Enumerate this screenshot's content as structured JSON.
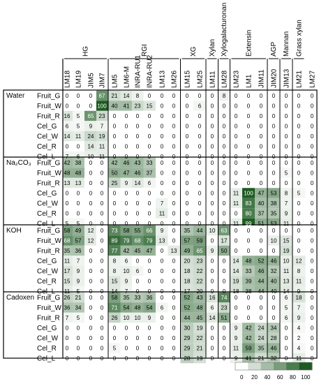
{
  "chart_data": {
    "type": "heatmap",
    "families": [
      {
        "name": "HG",
        "start": 0,
        "end": 3
      },
      {
        "name": "RGI",
        "start": 4,
        "end": 9
      },
      {
        "name": "XG",
        "start": 10,
        "end": 11
      },
      {
        "name": "Xylan",
        "start": 12,
        "end": 12
      },
      {
        "name": "Xylogalacturonan",
        "start": 13,
        "end": 13
      },
      {
        "name": "Extensin",
        "start": 14,
        "end": 16
      },
      {
        "name": "AGP",
        "start": 17,
        "end": 17
      },
      {
        "name": "Mannan",
        "start": 18,
        "end": 18
      },
      {
        "name": "Grass xylan",
        "start": 19,
        "end": 19
      }
    ],
    "antibodies": [
      "LM18",
      "LM19",
      "JIM5",
      "JIM7",
      "LM5",
      "LM6-M",
      "INRA-RU1",
      "INRA-RU2",
      "LM13",
      "LM26",
      "LM15",
      "LM25",
      "LM11",
      "LM28",
      "LM23",
      "LM1",
      "JIM11",
      "JIM20",
      "JIM13",
      "LM21",
      "LM27"
    ],
    "antibody_family_index": [
      0,
      0,
      0,
      0,
      1,
      1,
      1,
      1,
      1,
      1,
      2,
      2,
      3,
      3,
      4,
      5,
      5,
      5,
      6,
      7,
      8
    ],
    "extractions": [
      {
        "name": "Water",
        "rows": [
          {
            "label": "Fruit_G",
            "values": [
              0,
              0,
              0,
              67,
              21,
              14,
              8,
              0,
              0,
              0,
              0,
              0,
              0,
              8,
              0,
              0,
              0,
              0,
              0,
              0,
              0
            ]
          },
          {
            "label": "Fruit_W",
            "values": [
              0,
              0,
              0,
              100,
              40,
              41,
              23,
              15,
              0,
              0,
              0,
              6,
              0,
              0,
              0,
              0,
              0,
              0,
              0,
              0,
              0
            ]
          },
          {
            "label": "Fruit_R",
            "values": [
              16,
              5,
              65,
              23,
              0,
              0,
              0,
              0,
              0,
              0,
              0,
              0,
              0,
              0,
              0,
              0,
              0,
              0,
              0,
              0,
              0
            ]
          },
          {
            "label": "Cel_G",
            "values": [
              6,
              5,
              9,
              7,
              0,
              0,
              0,
              0,
              0,
              0,
              0,
              0,
              0,
              0,
              0,
              0,
              0,
              0,
              0,
              0,
              0
            ]
          },
          {
            "label": "Cel_W",
            "values": [
              14,
              11,
              24,
              19,
              0,
              0,
              0,
              0,
              0,
              0,
              0,
              0,
              0,
              0,
              0,
              0,
              0,
              0,
              0,
              0,
              0
            ]
          },
          {
            "label": "Cel_R",
            "values": [
              0,
              0,
              14,
              11,
              0,
              0,
              0,
              0,
              0,
              0,
              0,
              0,
              0,
              0,
              0,
              0,
              0,
              0,
              0,
              0,
              0
            ]
          },
          {
            "label": "Cel_L",
            "values": [
              7,
              6,
              10,
              11,
              0,
              0,
              0,
              0,
              0,
              0,
              0,
              0,
              0,
              0,
              0,
              0,
              0,
              0,
              0,
              0,
              0
            ]
          }
        ]
      },
      {
        "name": "Na₂CO₃",
        "rows": [
          {
            "label": "Fruit_G",
            "values": [
              42,
              38,
              0,
              0,
              42,
              46,
              43,
              33,
              0,
              0,
              0,
              0,
              0,
              0,
              0,
              0,
              0,
              0,
              0,
              0,
              0
            ]
          },
          {
            "label": "Fruit_W",
            "values": [
              48,
              48,
              0,
              0,
              50,
              47,
              46,
              37,
              0,
              0,
              0,
              0,
              0,
              0,
              0,
              0,
              0,
              0,
              5,
              0,
              0
            ]
          },
          {
            "label": "Fruit_R",
            "values": [
              13,
              13,
              0,
              0,
              25,
              9,
              14,
              6,
              0,
              0,
              0,
              0,
              0,
              0,
              0,
              0,
              0,
              0,
              0,
              0,
              0
            ]
          },
          {
            "label": "Cel_G",
            "values": [
              0,
              0,
              0,
              0,
              0,
              0,
              0,
              0,
              0,
              0,
              0,
              0,
              0,
              0,
              11,
              100,
              47,
              53,
              8,
              5,
              0
            ]
          },
          {
            "label": "Cel_W",
            "values": [
              0,
              0,
              0,
              0,
              0,
              0,
              0,
              0,
              7,
              0,
              0,
              0,
              0,
              0,
              11,
              83,
              40,
              38,
              7,
              0,
              0
            ]
          },
          {
            "label": "Cel_R",
            "values": [
              0,
              0,
              0,
              0,
              0,
              0,
              0,
              0,
              11,
              0,
              0,
              0,
              0,
              0,
              0,
              80,
              37,
              35,
              9,
              0,
              0
            ]
          },
          {
            "label": "Cel_L",
            "values": [
              5,
              5,
              0,
              0,
              0,
              0,
              0,
              0,
              0,
              0,
              0,
              0,
              0,
              0,
              11,
              99,
              51,
              53,
              11,
              0,
              0
            ]
          }
        ]
      },
      {
        "name": "KOH",
        "rows": [
          {
            "label": "Fruit_G",
            "values": [
              58,
              49,
              12,
              0,
              73,
              58,
              55,
              66,
              9,
              0,
              35,
              44,
              10,
              63,
              0,
              0,
              0,
              0,
              0,
              0,
              0
            ]
          },
          {
            "label": "Fruit_W",
            "values": [
              68,
              57,
              12,
              0,
              89,
              79,
              68,
              79,
              13,
              0,
              57,
              59,
              0,
              17,
              0,
              0,
              0,
              10,
              15,
              0,
              0
            ]
          },
          {
            "label": "Fruit_R",
            "values": [
              35,
              36,
              0,
              0,
              77,
              42,
              45,
              47,
              0,
              13,
              49,
              65,
              9,
              50,
              0,
              0,
              0,
              0,
              19,
              0,
              0
            ]
          },
          {
            "label": "Cel_G",
            "values": [
              11,
              7,
              0,
              0,
              8,
              6,
              0,
              0,
              0,
              0,
              20,
              23,
              0,
              0,
              14,
              48,
              52,
              46,
              10,
              12,
              0
            ]
          },
          {
            "label": "Cel_W",
            "values": [
              17,
              9,
              0,
              0,
              8,
              10,
              6,
              0,
              0,
              0,
              18,
              22,
              0,
              0,
              14,
              33,
              46,
              32,
              11,
              8,
              0
            ]
          },
          {
            "label": "Cel_R",
            "values": [
              15,
              9,
              0,
              0,
              15,
              9,
              0,
              0,
              0,
              0,
              18,
              22,
              0,
              0,
              19,
              39,
              44,
              40,
              13,
              11,
              0
            ]
          },
          {
            "label": "Cel_L",
            "values": [
              11,
              5,
              0,
              0,
              14,
              7,
              0,
              0,
              0,
              0,
              17,
              20,
              0,
              0,
              18,
              38,
              44,
              40,
              14,
              9,
              0
            ]
          }
        ]
      },
      {
        "name": "Cadoxen",
        "rows": [
          {
            "label": "Fruit_G",
            "values": [
              26,
              21,
              0,
              0,
              58,
              35,
              33,
              36,
              0,
              0,
              52,
              43,
              16,
              74,
              0,
              0,
              0,
              0,
              6,
              18,
              0
            ]
          },
          {
            "label": "Fruit_W",
            "values": [
              36,
              34,
              0,
              0,
              71,
              54,
              48,
              54,
              6,
              0,
              52,
              48,
              6,
              23,
              0,
              0,
              0,
              0,
              5,
              7,
              0
            ]
          },
          {
            "label": "Fruit_R",
            "values": [
              7,
              5,
              0,
              0,
              26,
              10,
              10,
              9,
              0,
              0,
              44,
              45,
              14,
              51,
              0,
              0,
              0,
              0,
              6,
              9,
              0
            ]
          },
          {
            "label": "Cel_G",
            "values": [
              0,
              0,
              0,
              0,
              0,
              0,
              0,
              0,
              0,
              0,
              30,
              19,
              0,
              0,
              9,
              42,
              24,
              34,
              0,
              4,
              0
            ]
          },
          {
            "label": "Cel_W",
            "values": [
              0,
              0,
              0,
              0,
              0,
              0,
              0,
              0,
              0,
              0,
              29,
              22,
              0,
              0,
              9,
              42,
              24,
              28,
              0,
              2,
              0
            ]
          },
          {
            "label": "Cel_R",
            "values": [
              0,
              0,
              0,
              0,
              5,
              0,
              0,
              0,
              0,
              0,
              29,
              21,
              0,
              0,
              11,
              59,
              35,
              46,
              0,
              4,
              0
            ]
          },
          {
            "label": "Cel_L",
            "values": [
              0,
              0,
              0,
              0,
              0,
              0,
              0,
              0,
              0,
              0,
              28,
              19,
              0,
              0,
              9,
              41,
              21,
              32,
              0,
              11,
              0
            ]
          }
        ]
      }
    ],
    "color_scale": {
      "min": 0,
      "max": 100,
      "low_color": "#ffffff",
      "high_color": "#1e5b22"
    },
    "legend": {
      "ticks": [
        0,
        20,
        40,
        60,
        80,
        100
      ],
      "placement": "bottom-right"
    }
  }
}
